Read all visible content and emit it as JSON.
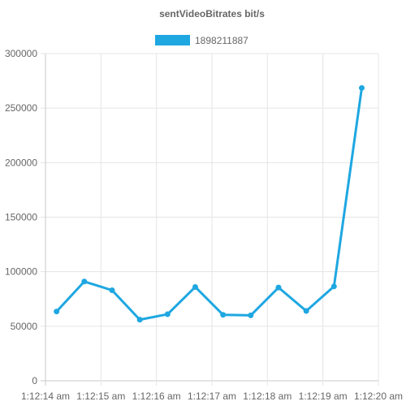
{
  "chart_data": {
    "type": "line",
    "title": "sentVideoBitrates bit/s",
    "legend_position": "top",
    "grid": true,
    "x_tick_labels": [
      "1:12:14 am",
      "1:12:15 am",
      "1:12:16 am",
      "1:12:17 am",
      "1:12:18 am",
      "1:12:19 am",
      "1:12:20 am"
    ],
    "x": [
      "1:12:14.2",
      "1:12:14.7",
      "1:12:15.2",
      "1:12:15.7",
      "1:12:16.2",
      "1:12:16.7",
      "1:12:17.2",
      "1:12:17.7",
      "1:12:18.2",
      "1:12:18.7",
      "1:12:19.2",
      "1:12:19.7"
    ],
    "ylim": [
      0,
      300000
    ],
    "y_ticks": [
      0,
      50000,
      100000,
      150000,
      200000,
      250000,
      300000
    ],
    "series": [
      {
        "name": "1898211887",
        "color": "#1ea7e1",
        "values": [
          63500,
          91000,
          83000,
          56000,
          61000,
          86000,
          60500,
          60000,
          85500,
          64000,
          86500,
          268500
        ]
      }
    ]
  }
}
